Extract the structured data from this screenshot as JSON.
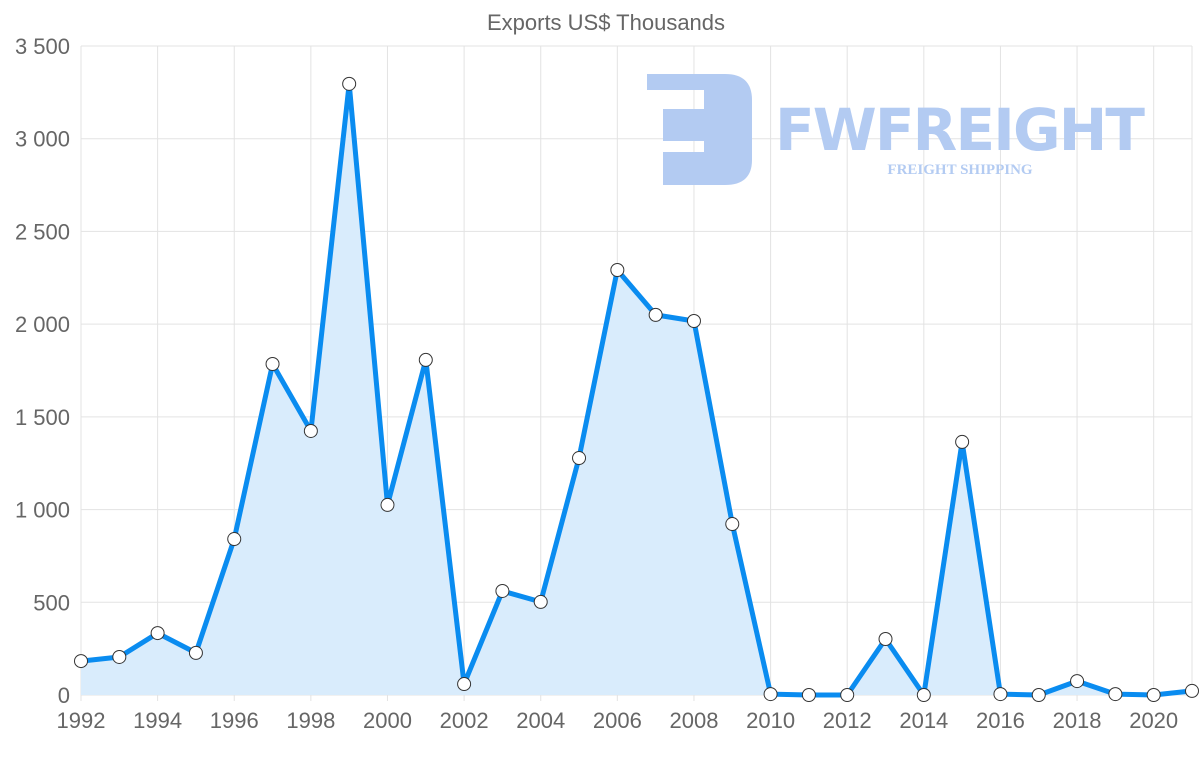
{
  "chart_data": {
    "type": "area",
    "title": "Exports US$ Thousands",
    "xlabel": "",
    "ylabel": "",
    "x": [
      1992,
      1993,
      1994,
      1995,
      1996,
      1997,
      1998,
      1999,
      2000,
      2001,
      2002,
      2003,
      2004,
      2005,
      2006,
      2007,
      2008,
      2009,
      2010,
      2011,
      2012,
      2013,
      2014,
      2015,
      2016,
      2017,
      2018,
      2019,
      2020,
      2021
    ],
    "series": [
      {
        "name": "Exports US$ Thousands",
        "values": [
          183,
          205,
          334,
          227,
          841,
          1785,
          1424,
          3296,
          1025,
          1807,
          59,
          561,
          502,
          1278,
          2292,
          2050,
          2017,
          922,
          5,
          0,
          0,
          302,
          0,
          1365,
          5,
          0,
          75,
          5,
          0,
          22
        ],
        "color": "#0a8cf0",
        "fill": "#d9ecfc"
      }
    ],
    "xlim": [
      1992,
      2021
    ],
    "ylim": [
      0,
      3500
    ],
    "xticks": [
      "1992",
      "1994",
      "1996",
      "1998",
      "2000",
      "2002",
      "2004",
      "2006",
      "2008",
      "2010",
      "2012",
      "2014",
      "2016",
      "2018",
      "2020"
    ],
    "yticks": [
      "0",
      "500",
      "1 000",
      "1 500",
      "2 000",
      "2 500",
      "3 000",
      "3 500"
    ],
    "grid": true,
    "legend": "none"
  },
  "watermark": {
    "brand": "FWFREIGHT",
    "tagline": "FREIGHT SHIPPING",
    "color": "#b3cbf2"
  }
}
